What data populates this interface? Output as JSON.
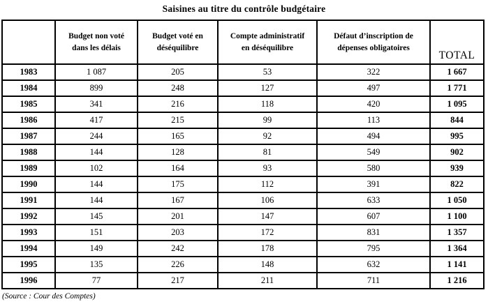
{
  "title": "Saisines au titre du contrôle budgétaire",
  "source": "(Source : Cour des Comptes)",
  "table": {
    "headers": [
      "Budget non voté\ndans les délais",
      "Budget voté en\ndéséquilibre",
      "Compte administratif\nen déséquilibre",
      "Défaut d’inscription de\ndépenses obligatoires",
      "TOTAL"
    ],
    "rows": [
      {
        "year": "1983",
        "values": [
          "1 087",
          "205",
          "53",
          "322"
        ],
        "total": "1 667"
      },
      {
        "year": "1984",
        "values": [
          "899",
          "248",
          "127",
          "497"
        ],
        "total": "1 771"
      },
      {
        "year": "1985",
        "values": [
          "341",
          "216",
          "118",
          "420"
        ],
        "total": "1 095"
      },
      {
        "year": "1986",
        "values": [
          "417",
          "215",
          "99",
          "113"
        ],
        "total": "844"
      },
      {
        "year": "1987",
        "values": [
          "244",
          "165",
          "92",
          "494"
        ],
        "total": "995"
      },
      {
        "year": "1988",
        "values": [
          "144",
          "128",
          "81",
          "549"
        ],
        "total": "902"
      },
      {
        "year": "1989",
        "values": [
          "102",
          "164",
          "93",
          "580"
        ],
        "total": "939"
      },
      {
        "year": "1990",
        "values": [
          "144",
          "175",
          "112",
          "391"
        ],
        "total": "822"
      },
      {
        "year": "1991",
        "values": [
          "144",
          "167",
          "106",
          "633"
        ],
        "total": "1 050"
      },
      {
        "year": "1992",
        "values": [
          "145",
          "201",
          "147",
          "607"
        ],
        "total": "1 100"
      },
      {
        "year": "1993",
        "values": [
          "151",
          "203",
          "172",
          "831"
        ],
        "total": "1 357"
      },
      {
        "year": "1994",
        "values": [
          "149",
          "242",
          "178",
          "795"
        ],
        "total": "1 364"
      },
      {
        "year": "1995",
        "values": [
          "135",
          "226",
          "148",
          "632"
        ],
        "total": "1 141"
      },
      {
        "year": "1996",
        "values": [
          "77",
          "217",
          "211",
          "711"
        ],
        "total": "1 216"
      }
    ]
  }
}
